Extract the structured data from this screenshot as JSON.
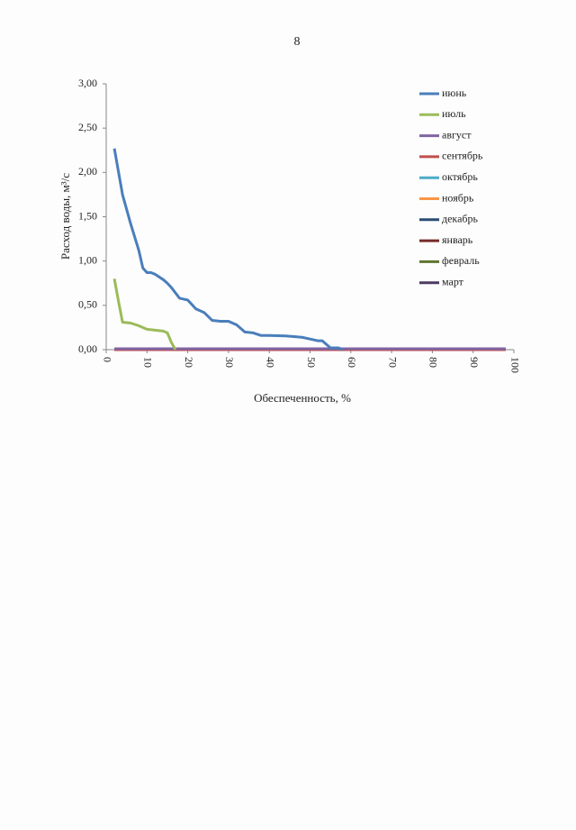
{
  "page_number": "8",
  "chart_data": {
    "type": "line",
    "y_label": "Расход воды, м³/с",
    "x_label": "Обеспеченность, %",
    "xlim": [
      0,
      100
    ],
    "xticks": [
      0,
      10,
      20,
      30,
      40,
      50,
      60,
      70,
      80,
      90,
      100
    ],
    "ylim": [
      0,
      3
    ],
    "yticks": [
      {
        "value": 0,
        "label": "0,00"
      },
      {
        "value": 0.5,
        "label": "0,50"
      },
      {
        "value": 1,
        "label": "1,00"
      },
      {
        "value": 1.5,
        "label": "1,50"
      },
      {
        "value": 2,
        "label": "2,00"
      },
      {
        "value": 2.5,
        "label": "2,50"
      },
      {
        "value": 3,
        "label": "3,00"
      }
    ],
    "legend": "right",
    "series": [
      {
        "name": "июнь",
        "color": "#4a7ebb",
        "x": [
          2,
          4,
          6,
          8,
          9,
          10,
          11,
          12,
          14,
          15,
          16,
          18,
          19,
          20,
          22,
          24,
          26,
          28,
          30,
          32,
          34,
          36,
          38,
          40,
          44,
          48,
          50,
          52,
          53,
          55,
          57,
          58
        ],
        "values": [
          2.27,
          1.75,
          1.42,
          1.12,
          0.92,
          0.87,
          0.87,
          0.85,
          0.79,
          0.75,
          0.7,
          0.58,
          0.57,
          0.56,
          0.46,
          0.42,
          0.33,
          0.32,
          0.32,
          0.28,
          0.2,
          0.19,
          0.16,
          0.16,
          0.155,
          0.14,
          0.12,
          0.1,
          0.1,
          0.02,
          0.02,
          0
        ]
      },
      {
        "name": "июль",
        "color": "#9bbb59",
        "x": [
          2,
          3,
          4,
          6,
          8,
          10,
          12,
          14,
          15,
          16,
          17
        ],
        "values": [
          0.8,
          0.55,
          0.31,
          0.3,
          0.27,
          0.23,
          0.22,
          0.21,
          0.19,
          0.08,
          0
        ]
      },
      {
        "name": "август",
        "color": "#8064a2",
        "x": [
          2,
          98
        ],
        "values": [
          0.01,
          0.01
        ]
      },
      {
        "name": "сентябрь",
        "color": "#c0504d",
        "x": [
          2,
          98
        ],
        "values": [
          0,
          0
        ]
      },
      {
        "name": "октябрь",
        "color": "#4bacc6",
        "x": [
          2,
          98
        ],
        "values": [
          0,
          0
        ]
      },
      {
        "name": "ноябрь",
        "color": "#f79646",
        "x": [
          2,
          98
        ],
        "values": [
          0,
          0
        ]
      },
      {
        "name": "декабрь",
        "color": "#2c4d75",
        "x": [
          2,
          98
        ],
        "values": [
          0,
          0
        ]
      },
      {
        "name": "январь",
        "color": "#772c2a",
        "x": [
          2,
          98
        ],
        "values": [
          0,
          0
        ]
      },
      {
        "name": "февраль",
        "color": "#5f7530",
        "x": [
          2,
          98
        ],
        "values": [
          0,
          0
        ]
      },
      {
        "name": "март",
        "color": "#4d3b62",
        "x": [
          2,
          98
        ],
        "values": [
          0,
          0
        ]
      }
    ]
  }
}
